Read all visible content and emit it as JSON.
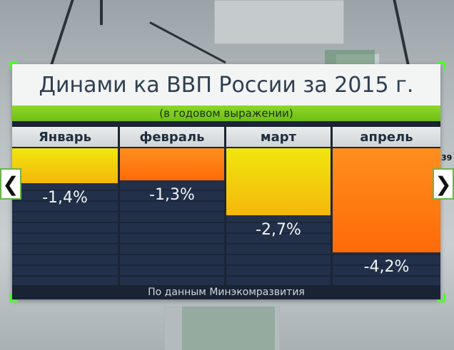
{
  "chart_data": {
    "type": "bar",
    "title": "Динами ка ВВП России за 2015 г.",
    "subtitle": "(в годовом выражении)",
    "categories": [
      "Январь",
      "февраль",
      "март",
      "апрель"
    ],
    "values": [
      -1.4,
      -1.3,
      -2.7,
      -4.2
    ],
    "value_labels": [
      "-1,4%",
      "-1,3%",
      "-2,7%",
      "-4,2%"
    ],
    "bar_colors": [
      "#f4c20d",
      "#ff7a12",
      "#f3d80e",
      "#ff7a12"
    ],
    "ylim": [
      -4.2,
      0
    ],
    "source": "По данным Минэкомразвития",
    "grid": false
  },
  "navigation": {
    "prev_icon": "chevron-left-icon",
    "next_icon": "chevron-right-icon",
    "prev_glyph": "❮",
    "next_glyph": "❯"
  },
  "side_number": "39",
  "colors": {
    "accent_green": "#7acb1c",
    "panel_dark": "#1c2535",
    "title_text": "#2d3f52"
  }
}
